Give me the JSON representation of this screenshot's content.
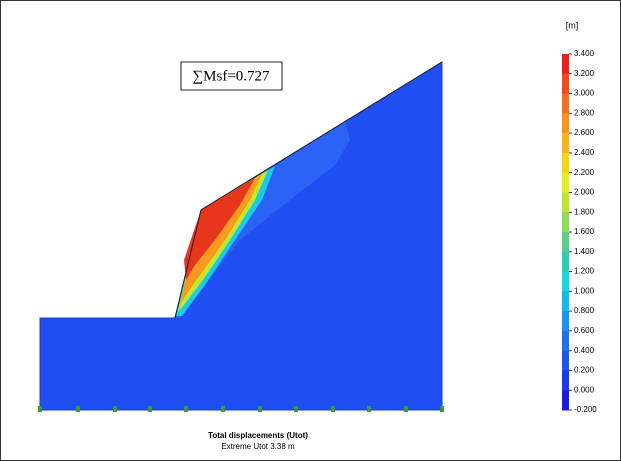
{
  "annotation": "∑Msf=0.727",
  "legend": {
    "unit": "[m]",
    "labels": [
      "3.400",
      "3.200",
      "3.000",
      "2.800",
      "2.600",
      "2.400",
      "2.200",
      "2.000",
      "1.800",
      "1.600",
      "1.400",
      "1.200",
      "1.000",
      "0.800",
      "0.600",
      "0.400",
      "0.200",
      "0.000",
      "-0.200"
    ]
  },
  "caption": {
    "title": "Total displacements (Utot)",
    "subtitle": "Extreme Utot 3.38 m"
  }
}
